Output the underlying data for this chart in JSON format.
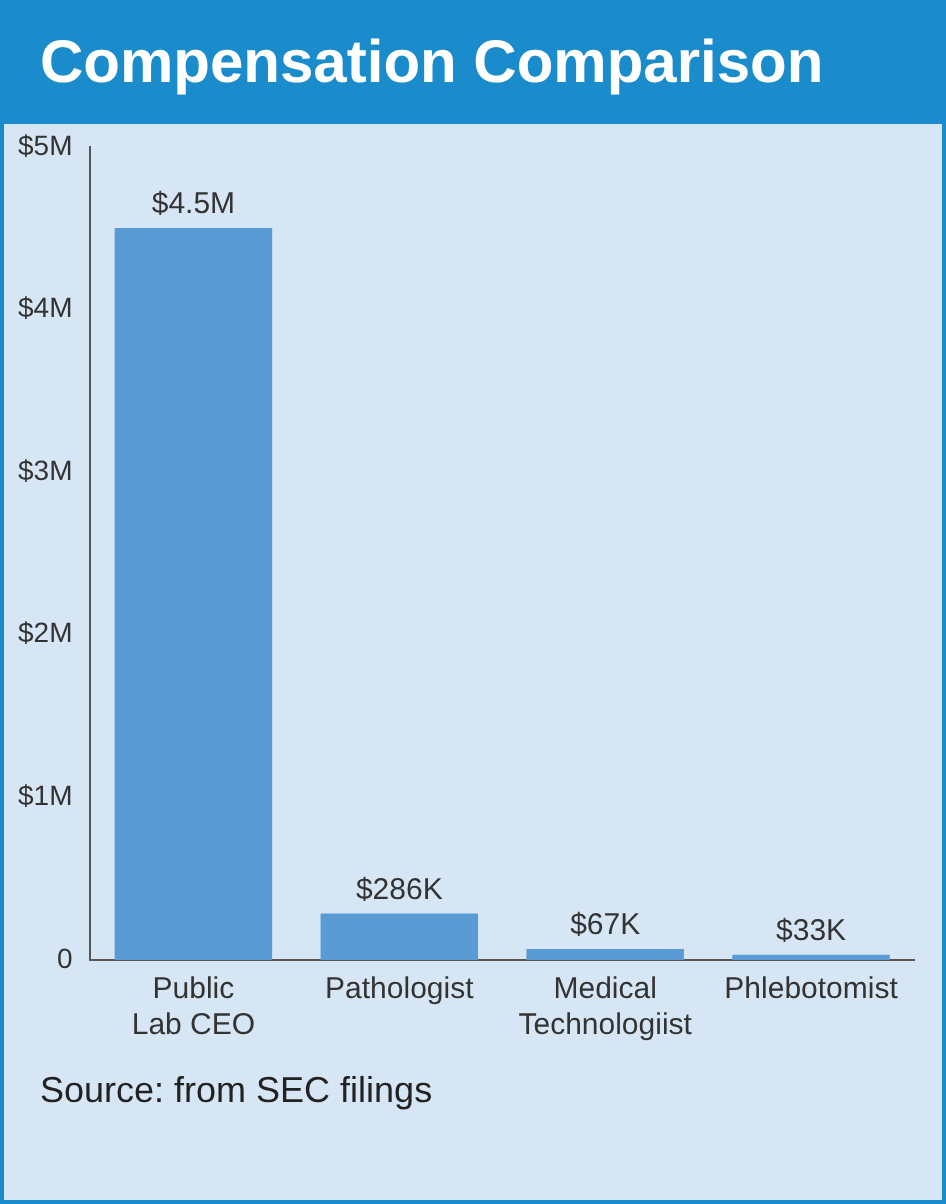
{
  "chart_data": {
    "type": "bar",
    "title": "Compensation Comparison",
    "categories": [
      "Public Lab CEO",
      "Pathologist",
      "Medical Technologiist",
      "Phlebotomist"
    ],
    "values": [
      4500000,
      286000,
      67000,
      33000
    ],
    "value_labels": [
      "$4.5M",
      "$286K",
      "$67K",
      "$33K"
    ],
    "color": "#5b9bd5",
    "ylim": [
      0,
      5000000
    ],
    "yticks": [
      {
        "value": 0,
        "label": "0"
      },
      {
        "value": 1000000,
        "label": "$1M"
      },
      {
        "value": 2000000,
        "label": "$2M"
      },
      {
        "value": 3000000,
        "label": "$3M"
      },
      {
        "value": 4000000,
        "label": "$4M"
      },
      {
        "value": 5000000,
        "label": "$5M"
      }
    ],
    "grid": false,
    "legend": false,
    "annotations": [
      "Source: from SEC filings"
    ]
  }
}
